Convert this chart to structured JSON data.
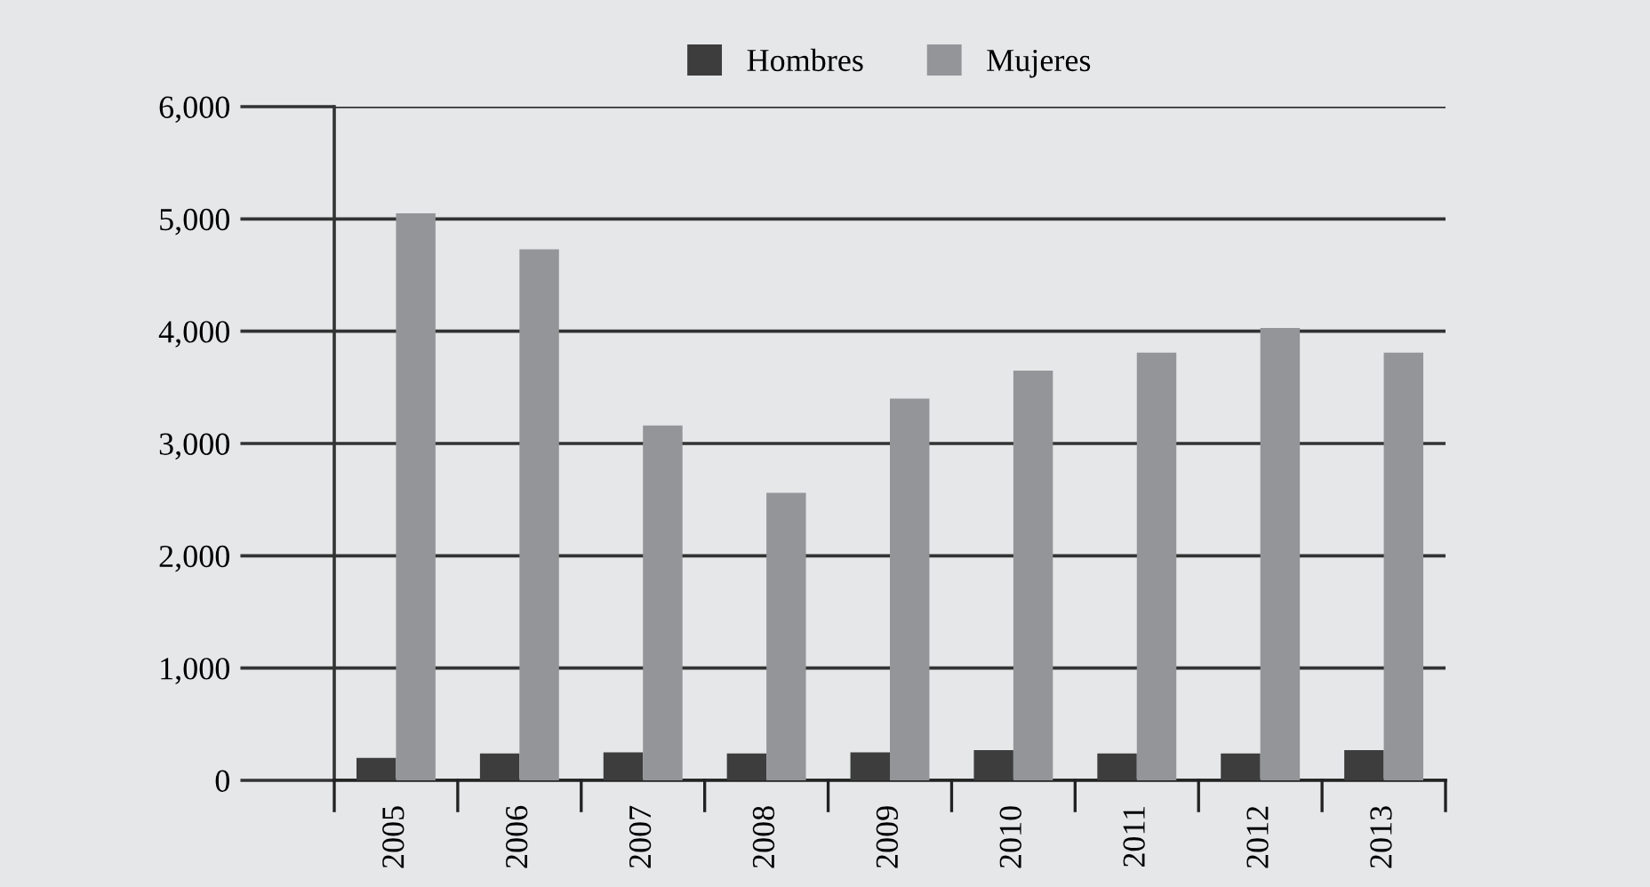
{
  "chart_data": {
    "type": "bar",
    "categories": [
      "2005",
      "2006",
      "2007",
      "2008",
      "2009",
      "2010",
      "2011",
      "2012",
      "2013"
    ],
    "series": [
      {
        "name": "Hombres",
        "color": "#3d3d3d",
        "values": [
          200,
          240,
          250,
          240,
          250,
          270,
          240,
          240,
          270
        ]
      },
      {
        "name": "Mujeres",
        "color": "#949598",
        "values": [
          5050,
          4730,
          3160,
          2560,
          3400,
          3650,
          3810,
          4030,
          3810
        ]
      }
    ],
    "ylim": [
      0,
      6000
    ],
    "yticks": [
      {
        "value": 0,
        "label": "0"
      },
      {
        "value": 1000,
        "label": "1,000"
      },
      {
        "value": 2000,
        "label": "2,000"
      },
      {
        "value": 3000,
        "label": "3,000"
      },
      {
        "value": 4000,
        "label": "4,000"
      },
      {
        "value": 5000,
        "label": "5,000"
      },
      {
        "value": 6000,
        "label": "6,000"
      }
    ],
    "grid": "y",
    "legend": "top"
  }
}
